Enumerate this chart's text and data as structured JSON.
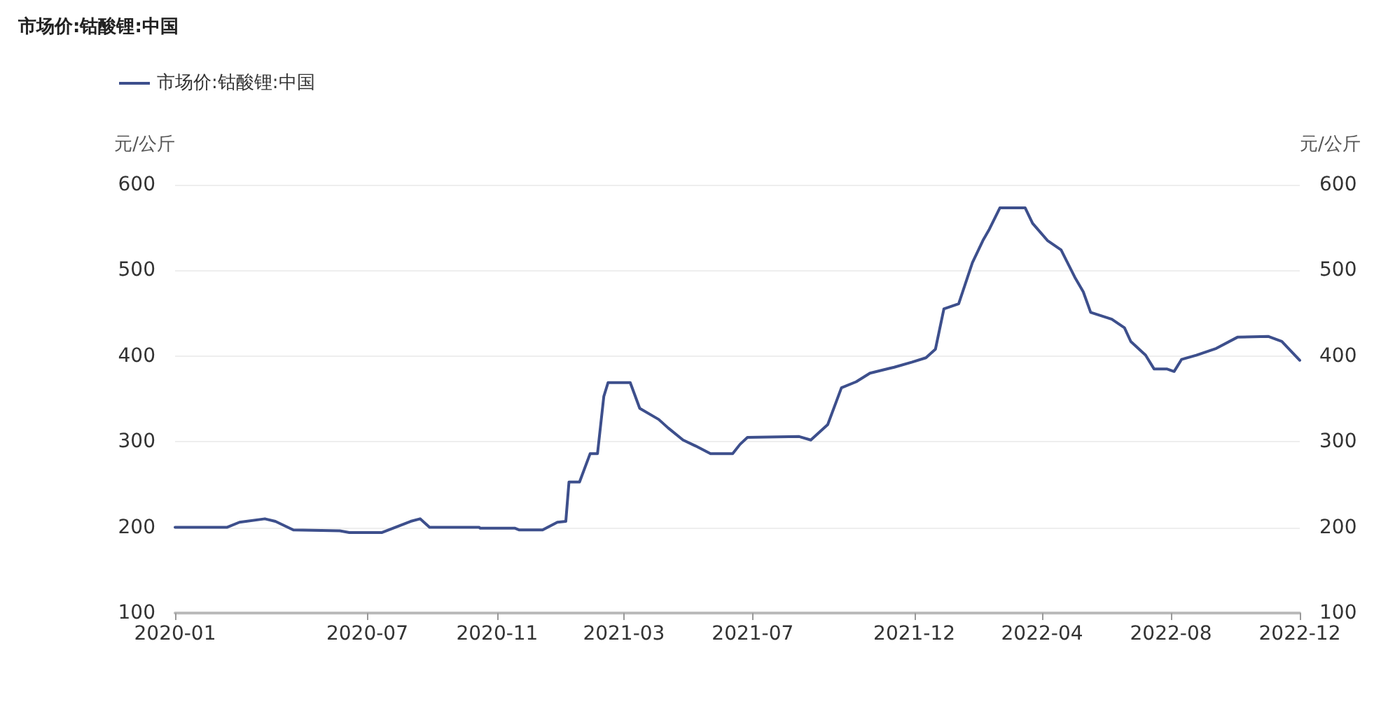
{
  "chart_data": {
    "type": "line",
    "title": "市场价:钴酸锂:中国",
    "ylabel": "元/公斤",
    "y2label": "元/公斤",
    "x": [
      "2020-01-01",
      "2020-02-19",
      "2020-03-02",
      "2020-03-26",
      "2020-04-05",
      "2020-04-22",
      "2020-06-05",
      "2020-06-14",
      "2020-07-15",
      "2020-08-11",
      "2020-08-20",
      "2020-08-29",
      "2020-10-15",
      "2020-10-16",
      "2020-11-18",
      "2020-11-22",
      "2020-12-14",
      "2020-12-28",
      "2021-01-05",
      "2021-01-08",
      "2021-01-18",
      "2021-01-28",
      "2021-02-04",
      "2021-02-10",
      "2021-02-14",
      "2021-03-07",
      "2021-03-16",
      "2021-04-03",
      "2021-04-12",
      "2021-04-26",
      "2021-05-08",
      "2021-05-22",
      "2021-06-12",
      "2021-06-19",
      "2021-06-26",
      "2021-08-14",
      "2021-08-25",
      "2021-09-10",
      "2021-09-23",
      "2021-10-07",
      "2021-10-20",
      "2021-11-12",
      "2021-11-29",
      "2021-12-12",
      "2021-12-21",
      "2021-12-29",
      "2022-01-12",
      "2022-01-25",
      "2022-02-04",
      "2022-02-10",
      "2022-02-20",
      "2022-03-16",
      "2022-03-23",
      "2022-04-06",
      "2022-04-19",
      "2022-05-02",
      "2022-05-10",
      "2022-05-17",
      "2022-06-06",
      "2022-06-18",
      "2022-06-24",
      "2022-07-08",
      "2022-07-16",
      "2022-07-28",
      "2022-08-04",
      "2022-08-11",
      "2022-08-25",
      "2022-09-13",
      "2022-10-03",
      "2022-11-01",
      "2022-11-14",
      "2022-12-01"
    ],
    "series": [
      {
        "name": "市场价:钴酸锂:中国",
        "color": "#3d4f8c",
        "values": [
          200,
          200,
          206,
          210,
          207,
          197,
          196,
          194,
          194,
          207,
          210,
          200,
          200,
          199,
          199,
          197,
          197,
          206,
          207,
          253,
          253,
          286,
          286,
          353,
          369,
          369,
          339,
          326,
          316,
          302,
          295,
          286,
          286,
          297,
          305,
          306,
          302,
          320,
          363,
          370,
          380,
          387,
          393,
          398,
          408,
          455,
          461,
          509,
          535,
          548,
          573,
          573,
          555,
          535,
          524,
          492,
          475,
          451,
          443,
          433,
          417,
          401,
          385,
          385,
          382,
          396,
          401,
          409,
          422,
          423,
          417,
          395
        ]
      }
    ],
    "xlim": [
      "2020-01-01",
      "2022-12-01"
    ],
    "xticks": [
      "2020-01",
      "2020-07",
      "2020-11",
      "2021-03",
      "2021-07",
      "2021-12",
      "2022-04",
      "2022-08",
      "2022-12"
    ],
    "ylim": [
      100,
      600
    ],
    "yticks": [
      100,
      200,
      300,
      400,
      500,
      600
    ],
    "y2lim": [
      100,
      600
    ],
    "y2ticks": [
      100,
      200,
      300,
      400,
      500,
      600
    ],
    "grid": "y",
    "legend": "top left",
    "marker": "none",
    "line_style": "solid"
  }
}
